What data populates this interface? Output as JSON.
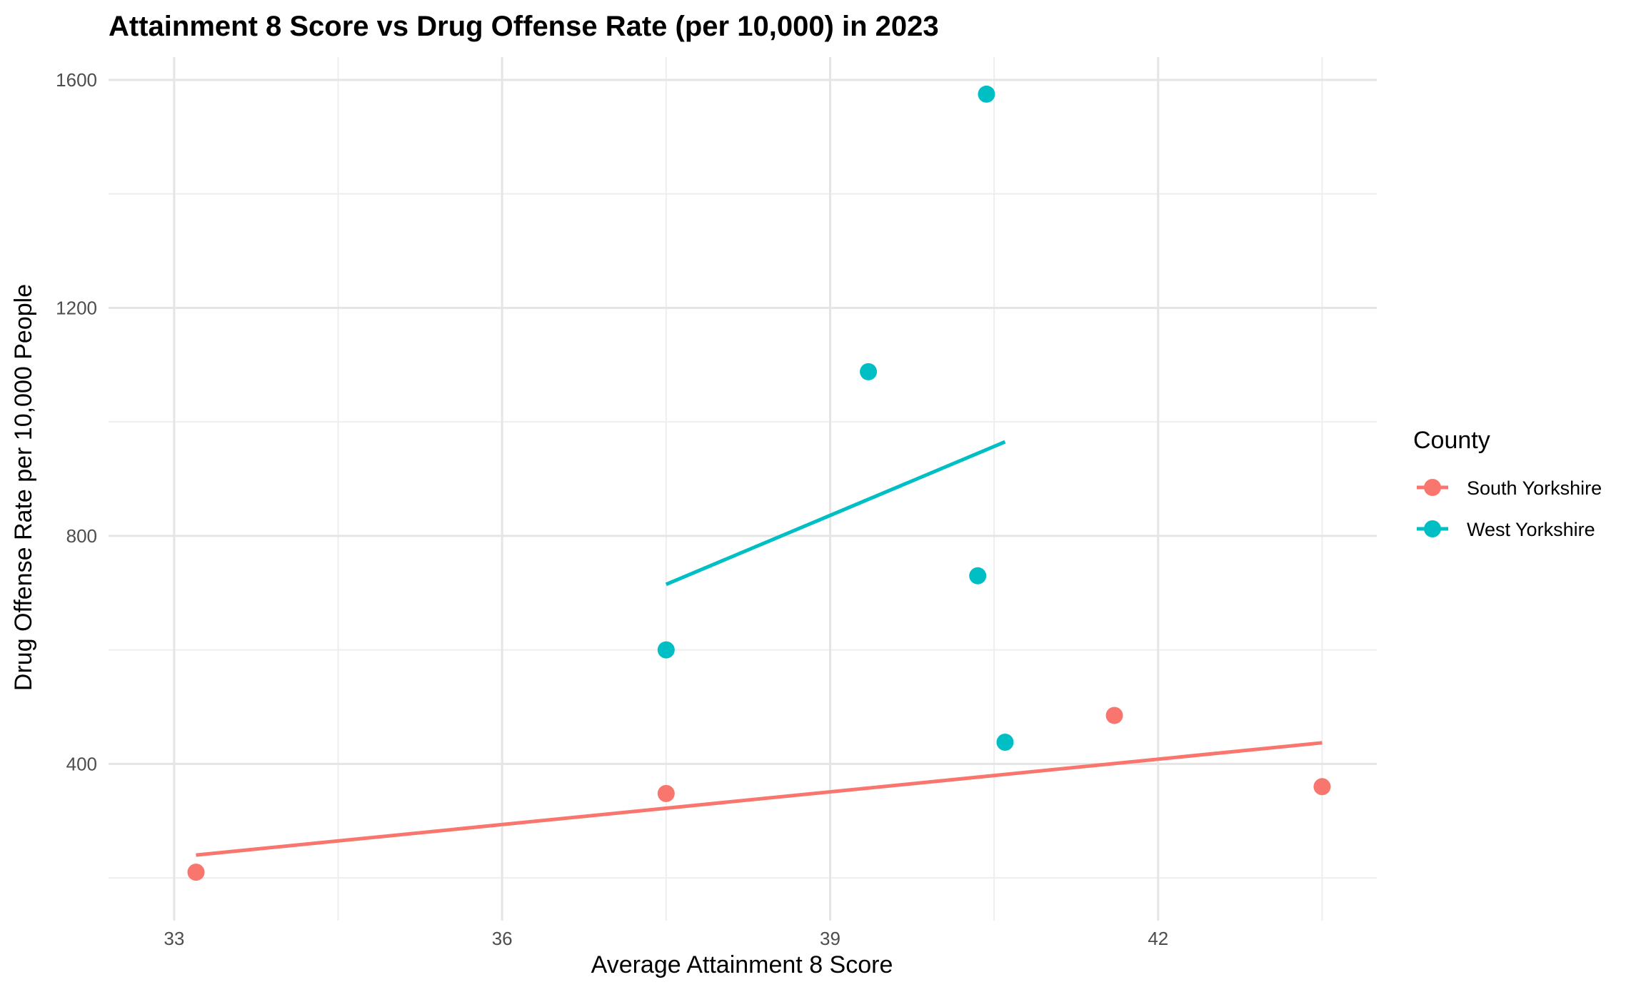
{
  "chart_data": {
    "type": "scatter",
    "title": "Attainment 8 Score vs Drug Offense Rate (per 10,000) in 2023",
    "xlabel": "Average Attainment 8 Score",
    "ylabel": "Drug Offense Rate per 10,000 People",
    "xlim": [
      32.4,
      44.0
    ],
    "ylim": [
      125,
      1640
    ],
    "x_ticks": [
      33,
      36,
      39,
      42
    ],
    "x_tick_labels": [
      "33",
      "36",
      "39",
      "42"
    ],
    "x_minor_ticks": [
      34.5,
      37.5,
      40.5,
      43.5
    ],
    "y_ticks": [
      400,
      800,
      1200,
      1600
    ],
    "y_tick_labels": [
      "400",
      "800",
      "1200",
      "1600"
    ],
    "y_minor_ticks": [
      200,
      600,
      1000,
      1400
    ],
    "grid": true,
    "legend": {
      "title": "County",
      "position": "right"
    },
    "series": [
      {
        "name": "South Yorkshire",
        "color": "#F8766D",
        "points": [
          {
            "x": 33.2,
            "y": 210
          },
          {
            "x": 37.5,
            "y": 348
          },
          {
            "x": 41.6,
            "y": 485
          },
          {
            "x": 43.5,
            "y": 360
          }
        ],
        "trend": {
          "x": [
            33.2,
            43.5
          ],
          "y": [
            240,
            437
          ]
        }
      },
      {
        "name": "West Yorkshire",
        "color": "#00BFC4",
        "points": [
          {
            "x": 37.5,
            "y": 600
          },
          {
            "x": 39.35,
            "y": 1088
          },
          {
            "x": 40.35,
            "y": 730
          },
          {
            "x": 40.43,
            "y": 1575
          },
          {
            "x": 40.6,
            "y": 438
          }
        ],
        "trend": {
          "x": [
            37.5,
            40.6
          ],
          "y": [
            715,
            965
          ]
        }
      }
    ]
  }
}
